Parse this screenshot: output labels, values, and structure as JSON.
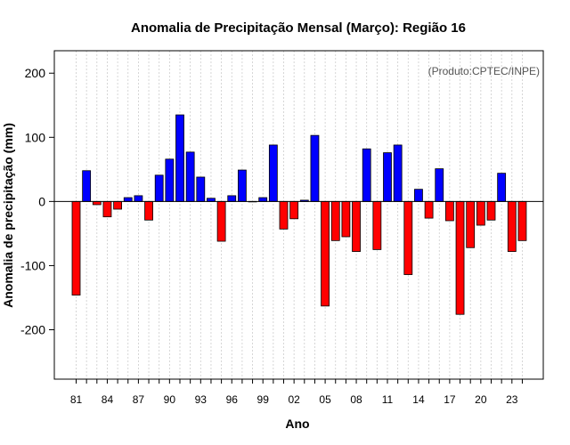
{
  "chart_data": {
    "type": "bar",
    "title": "Anomalia de Precipitação Mensal (Março): Região 16",
    "annotation": "(Produto:CPTEC/INPE)",
    "xlabel": "Ano",
    "ylabel": "Anomalia de precipitação (mm)",
    "ylim": [
      -277,
      235
    ],
    "yticks": [
      -200,
      -100,
      0,
      100,
      200
    ],
    "grid": "vertical dotted",
    "x_tick_labels": [
      "81",
      "84",
      "87",
      "90",
      "93",
      "96",
      "99",
      "02",
      "05",
      "08",
      "11",
      "14",
      "17",
      "20",
      "23"
    ],
    "positive_color": "#0000ff",
    "negative_color": "#ff0000",
    "years": [
      1981,
      1982,
      1983,
      1984,
      1985,
      1986,
      1987,
      1988,
      1989,
      1990,
      1991,
      1992,
      1993,
      1994,
      1995,
      1996,
      1997,
      1998,
      1999,
      2000,
      2001,
      2002,
      2003,
      2004,
      2005,
      2006,
      2007,
      2008,
      2009,
      2010,
      2011,
      2012,
      2013,
      2014,
      2015,
      2016,
      2017,
      2018,
      2019,
      2020,
      2021,
      2022,
      2023,
      2024
    ],
    "values": [
      -146,
      48,
      -5,
      -24,
      -12,
      6,
      9,
      -29,
      41,
      66,
      135,
      77,
      38,
      5,
      -62,
      9,
      49,
      0,
      6,
      88,
      -43,
      -27,
      2,
      103,
      -163,
      -61,
      -55,
      -78,
      82,
      -75,
      76,
      88,
      -114,
      19,
      -26,
      51,
      -30,
      -176,
      -72,
      -37,
      -29,
      44,
      -78,
      -61
    ]
  }
}
